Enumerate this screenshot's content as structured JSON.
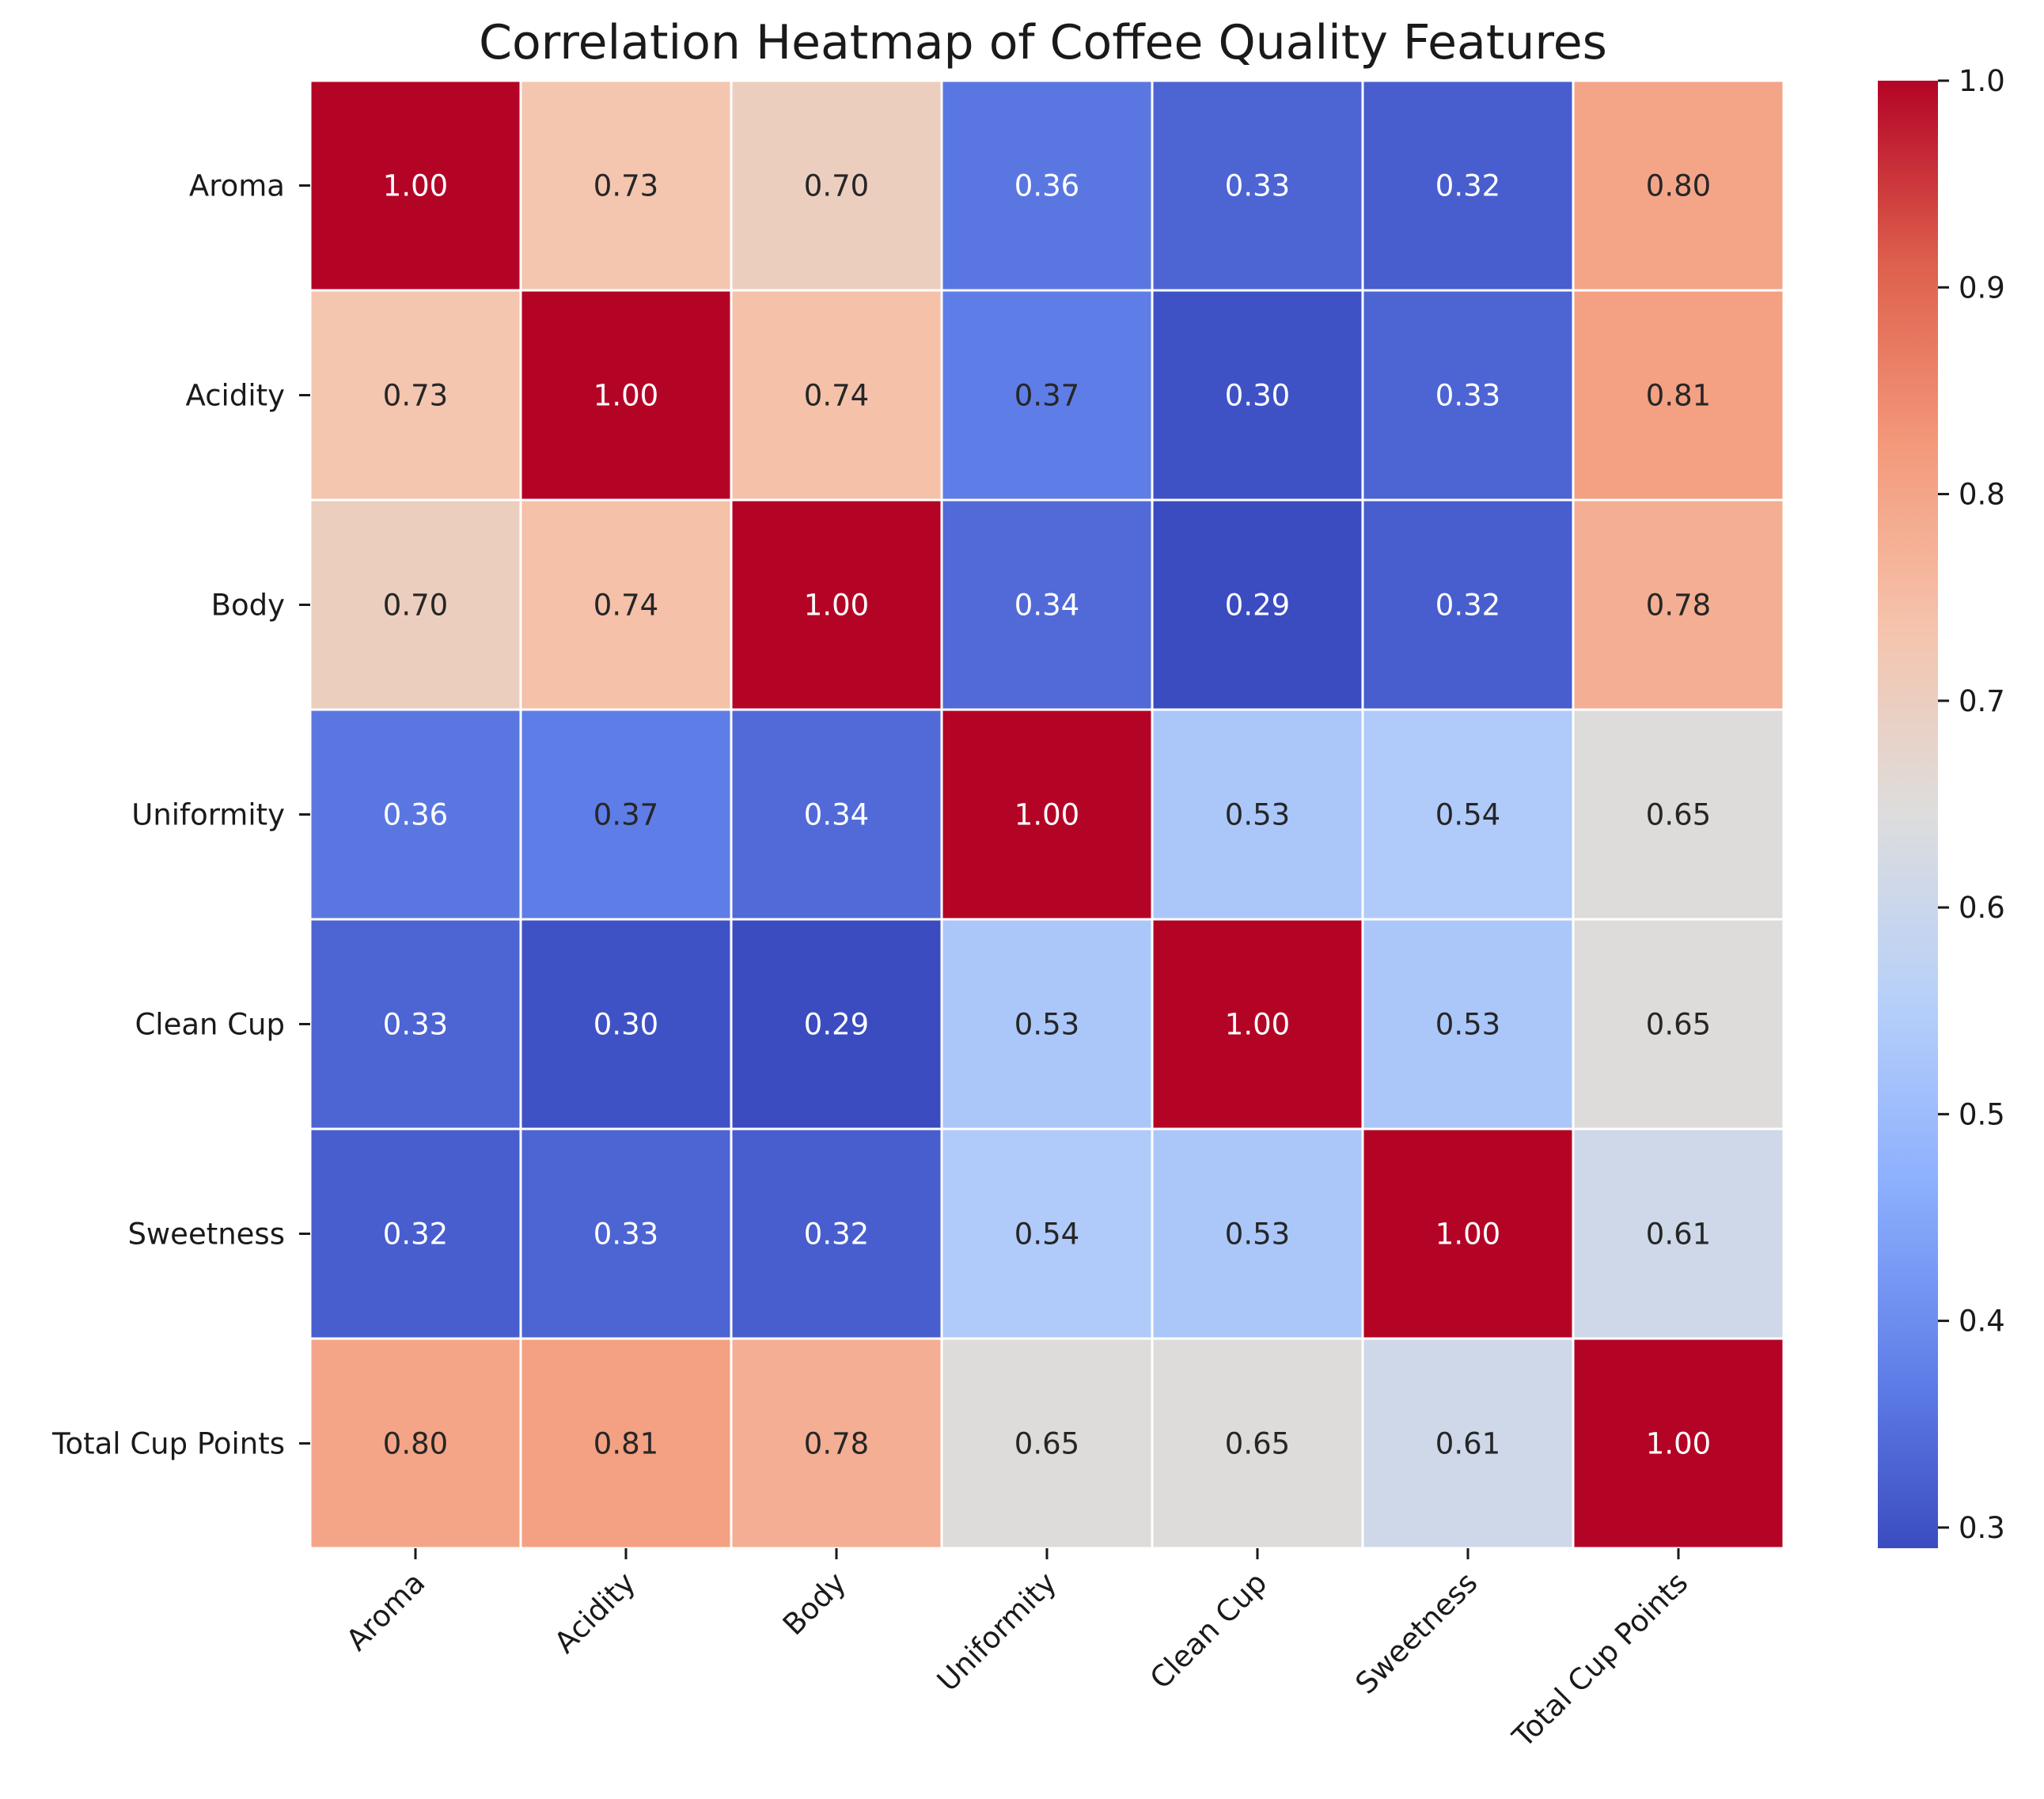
{
  "chart_data": {
    "type": "heatmap",
    "title": "Correlation Heatmap of Coffee Quality Features",
    "xlabel": "",
    "ylabel": "",
    "rows": [
      "Aroma",
      "Acidity",
      "Body",
      "Uniformity",
      "Clean Cup",
      "Sweetness",
      "Total Cup Points"
    ],
    "columns": [
      "Aroma",
      "Acidity",
      "Body",
      "Uniformity",
      "Clean Cup",
      "Sweetness",
      "Total Cup Points"
    ],
    "values": [
      [
        1.0,
        0.73,
        0.7,
        0.36,
        0.33,
        0.32,
        0.8
      ],
      [
        0.73,
        1.0,
        0.74,
        0.37,
        0.3,
        0.33,
        0.81
      ],
      [
        0.7,
        0.74,
        1.0,
        0.34,
        0.29,
        0.32,
        0.78
      ],
      [
        0.36,
        0.37,
        0.34,
        1.0,
        0.53,
        0.54,
        0.65
      ],
      [
        0.33,
        0.3,
        0.29,
        0.53,
        1.0,
        0.53,
        0.65
      ],
      [
        0.32,
        0.33,
        0.32,
        0.54,
        0.53,
        1.0,
        0.61
      ],
      [
        0.8,
        0.81,
        0.78,
        0.65,
        0.65,
        0.61,
        1.0
      ]
    ],
    "value_format": "0.00",
    "colormap": "coolwarm",
    "colorbar": {
      "range": [
        0.29,
        1.0
      ],
      "ticks": [
        0.3,
        0.4,
        0.5,
        0.6,
        0.7,
        0.8,
        0.9,
        1.0
      ],
      "tick_labels": [
        "0.3",
        "0.4",
        "0.5",
        "0.6",
        "0.7",
        "0.8",
        "0.9",
        "1.0"
      ],
      "placement": "right"
    },
    "x_tick_rotation": 45,
    "grid": false,
    "cell_border_color": "#ffffff"
  }
}
